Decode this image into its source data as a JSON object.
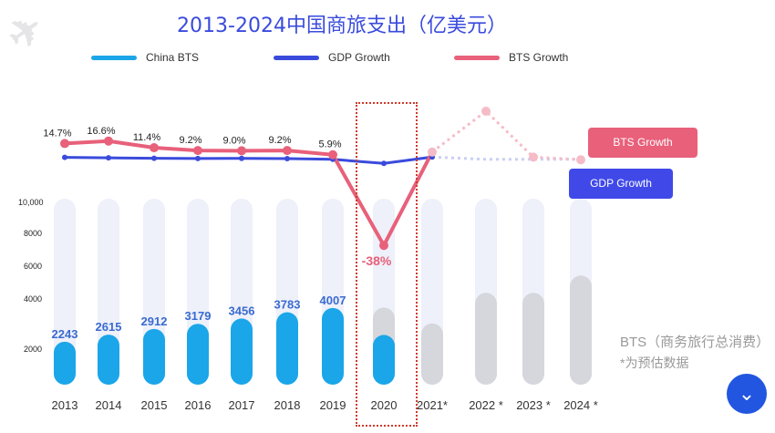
{
  "title": "2013-2024中国商旅支出（亿美元）",
  "legend": [
    {
      "label": "China BTS",
      "color": "#1aa6e8"
    },
    {
      "label": "GDP Growth",
      "color": "#3a4bdc"
    },
    {
      "label": "BTS Growth",
      "color": "#e8607a"
    }
  ],
  "tags": {
    "bts": "BTS Growth",
    "gdp": "GDP Growth"
  },
  "notes": [
    "BTS（商务旅行总消费）",
    "*为预估数据"
  ],
  "chart_data": {
    "type": "bar+line",
    "title": "2013-2024中国商旅支出（亿美元）",
    "categories": [
      "2013",
      "2014",
      "2015",
      "2016",
      "2017",
      "2018",
      "2019",
      "2020",
      "2021*",
      "2022 *",
      "2023 *",
      "2024 *"
    ],
    "y_ticks": [
      "10,000",
      "8000",
      "6000",
      "4000",
      "2000"
    ],
    "bts_values": [
      2243,
      2615,
      2912,
      3179,
      3456,
      3783,
      4007,
      2600,
      3200,
      4800,
      4800,
      5700
    ],
    "bts_labels": [
      "2243",
      "2615",
      "2912",
      "3179",
      "3456",
      "3783",
      "4007",
      "",
      "",
      "",
      "",
      ""
    ],
    "estimated_from_index": 8,
    "bts_growth": [
      14.7,
      16.6,
      11.4,
      9.2,
      9.0,
      9.2,
      5.9,
      -38,
      8,
      40,
      4,
      2
    ],
    "bts_growth_labels": [
      "14.7%",
      "16.6%",
      "11.4%",
      "9.2%",
      "9.0%",
      "9.2%",
      "5.9%",
      "-38%",
      "",
      "",
      "",
      ""
    ],
    "gdp_growth": [
      7.8,
      7.4,
      7.0,
      6.8,
      6.9,
      6.7,
      6.0,
      2.3,
      8.1,
      6,
      6,
      6
    ],
    "highlight": "2020"
  }
}
